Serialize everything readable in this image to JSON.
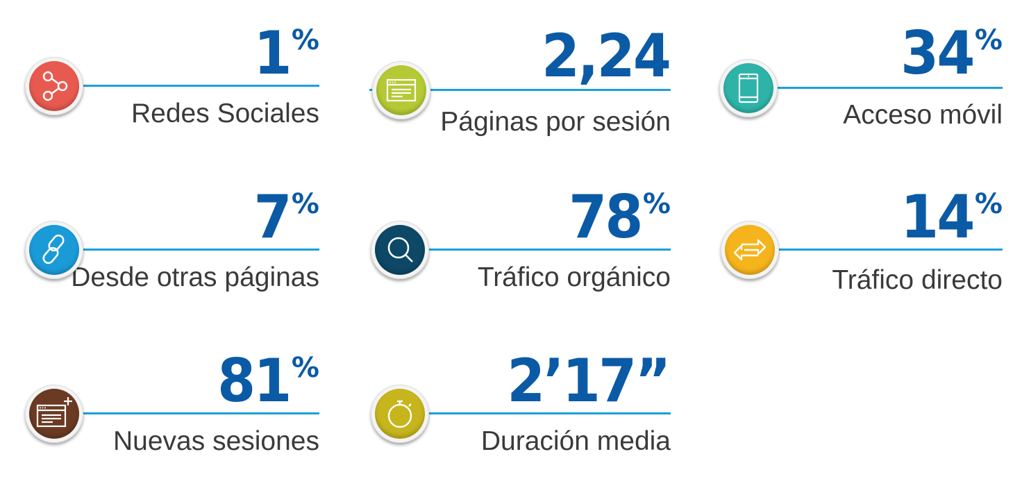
{
  "stats": [
    {
      "value": "1",
      "suffix": "%",
      "label": "Redes Sociales",
      "icon": "share-icon",
      "color": "#e85a4f"
    },
    {
      "value": "2,24",
      "suffix": "",
      "label": "Páginas por sesión",
      "icon": "browser-window-icon",
      "color": "#b5c934"
    },
    {
      "value": "34",
      "suffix": "%",
      "label": "Acceso móvil",
      "icon": "mobile-device-icon",
      "color": "#2fb3a8"
    },
    {
      "value": "7",
      "suffix": "%",
      "label": "Desde otras páginas",
      "icon": "link-icon",
      "color": "#1a9bd8"
    },
    {
      "value": "78",
      "suffix": "%",
      "label": "Tráfico orgánico",
      "icon": "search-icon",
      "color": "#0d4866"
    },
    {
      "value": "14",
      "suffix": "%",
      "label": "Tráfico directo",
      "icon": "exchange-arrows-icon",
      "color": "#f5b41c"
    },
    {
      "value": "81",
      "suffix": "%",
      "label": "Nuevas sesiones",
      "icon": "new-window-icon",
      "color": "#6b3a22"
    },
    {
      "value": "2’17”",
      "suffix": "",
      "label": "Duración media",
      "icon": "stopwatch-icon",
      "color": "#c6b51c"
    }
  ]
}
